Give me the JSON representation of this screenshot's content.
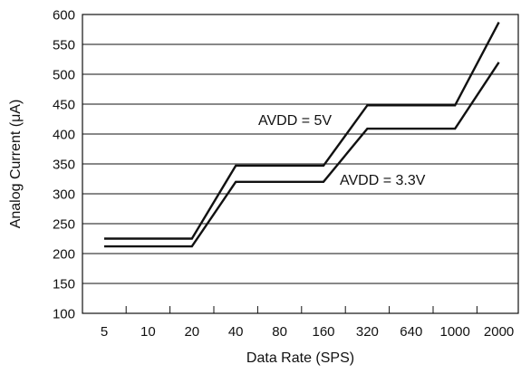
{
  "chart_data": {
    "type": "line",
    "title": "",
    "xlabel": "Data Rate (SPS)",
    "ylabel": "Analog Current (μA)",
    "ylim": [
      100,
      600
    ],
    "yticks": [
      100,
      150,
      200,
      250,
      300,
      350,
      400,
      450,
      500,
      550,
      600
    ],
    "categories": [
      "5",
      "10",
      "20",
      "40",
      "80",
      "160",
      "320",
      "640",
      "1000",
      "2000"
    ],
    "grid": "horizontal",
    "legend": "none",
    "line_color": "#111111",
    "series": [
      {
        "name": "AVDD = 5V",
        "points": [
          {
            "x": "5",
            "y": 225
          },
          {
            "x": "20",
            "y": 225
          },
          {
            "x": "40",
            "y": 347
          },
          {
            "x": "160",
            "y": 347
          },
          {
            "x": "320",
            "y": 448
          },
          {
            "x": "1000",
            "y": 448
          },
          {
            "x": "2000",
            "y": 587
          }
        ]
      },
      {
        "name": "AVDD = 3.3V",
        "points": [
          {
            "x": "5",
            "y": 212
          },
          {
            "x": "20",
            "y": 212
          },
          {
            "x": "40",
            "y": 320
          },
          {
            "x": "160",
            "y": 320
          },
          {
            "x": "320",
            "y": 409
          },
          {
            "x": "1000",
            "y": 409
          },
          {
            "x": "2000",
            "y": 520
          }
        ]
      }
    ]
  }
}
